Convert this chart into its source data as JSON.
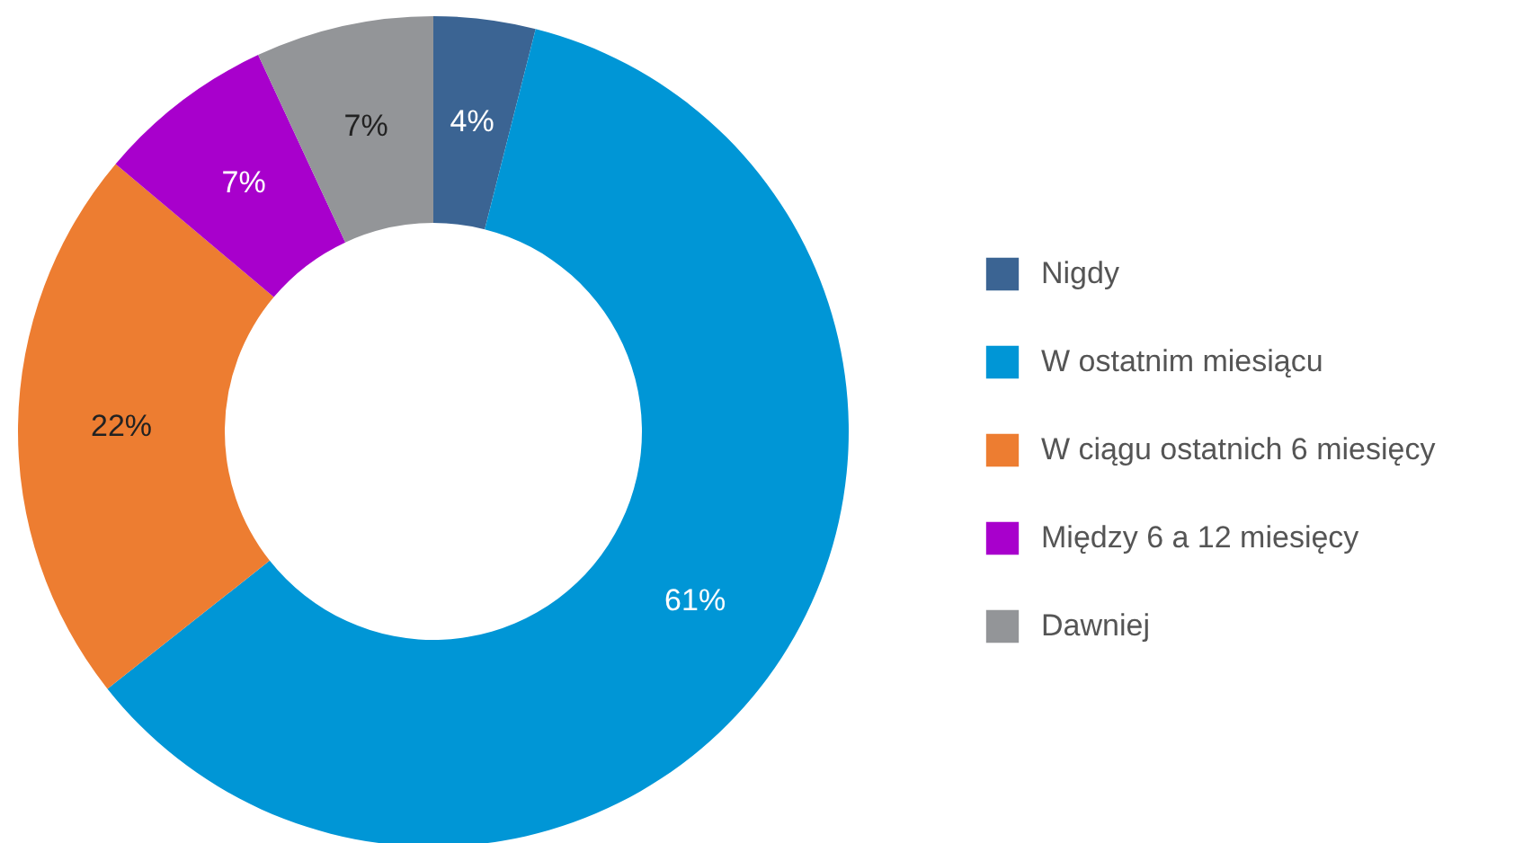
{
  "chart_data": {
    "type": "donut",
    "categories": [
      "Nigdy",
      "W ostatnim miesiącu",
      "W ciągu ostatnich 6 miesięcy",
      "Między 6 a 12 miesięcy",
      "Dawniej"
    ],
    "values": [
      4,
      61,
      22,
      7,
      7
    ],
    "value_labels": [
      "4%",
      "61%",
      "22%",
      "7%",
      "7%"
    ],
    "colors": [
      "#3b6493",
      "#0096d6",
      "#ed7d31",
      "#a800cc",
      "#939598"
    ],
    "legend": "right"
  }
}
